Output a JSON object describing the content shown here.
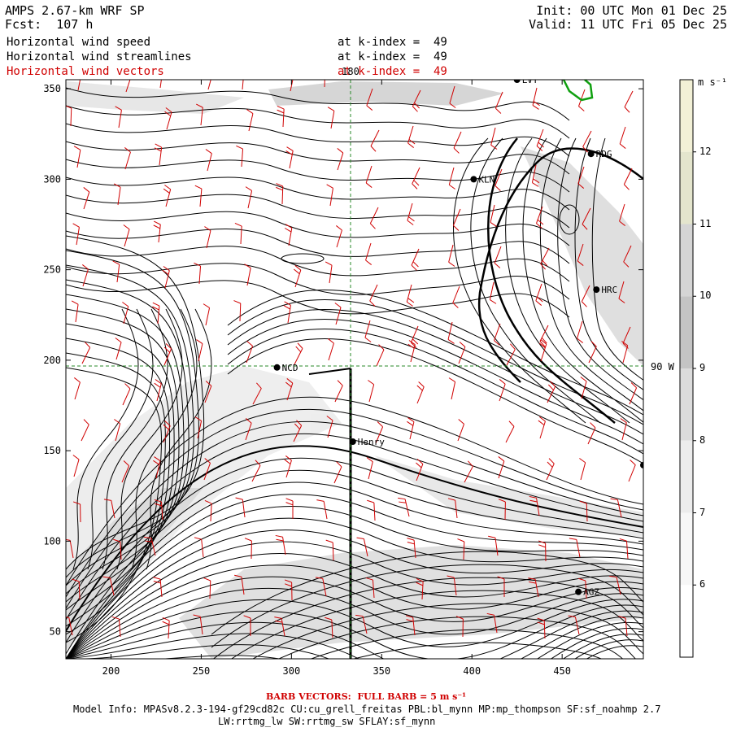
{
  "header": {
    "model": "AMPS 2.67-km WRF SP",
    "forecast": "Fcst:  107 h",
    "init": "Init: 00 UTC Mon 01 Dec 25",
    "valid": "Valid: 11 UTC Fri 05 Dec 25"
  },
  "fields": [
    {
      "name": "Horizontal wind speed",
      "level": "at k-index =  49",
      "color": "#000000"
    },
    {
      "name": "Horizontal wind streamlines",
      "level": "at k-index =  49",
      "color": "#000000"
    },
    {
      "name": "Horizontal wind vectors",
      "level": "at k-index =  49",
      "color": "#d00000"
    }
  ],
  "map": {
    "x_ticks": [
      "200",
      "250",
      "300",
      "350",
      "400",
      "450"
    ],
    "y_ticks": [
      "350",
      "300",
      "250",
      "200",
      "150",
      "100",
      "50"
    ],
    "meridian_label": "180",
    "parallel_label": "90 W",
    "stations": [
      {
        "id": "LVT",
        "x": 425,
        "y": 355
      },
      {
        "id": "RDG",
        "x": 466,
        "y": 314
      },
      {
        "id": "KLN",
        "x": 401,
        "y": 300
      },
      {
        "id": "HRC",
        "x": 469,
        "y": 239
      },
      {
        "id": "NCD",
        "x": 292,
        "y": 196
      },
      {
        "id": "Henry",
        "x": 334,
        "y": 155
      },
      {
        "id": "AGZ",
        "x": 459,
        "y": 72
      },
      {
        "id": "",
        "x": 495,
        "y": 142
      }
    ]
  },
  "colorbar": {
    "units": "m s⁻¹",
    "labels": [
      "12",
      "11",
      "10",
      "9",
      "8",
      "7",
      "6"
    ],
    "colors": [
      "#f2f0d6",
      "#e4e5cd",
      "#d5d5d5",
      "#c4c4c4",
      "#dcdcdc",
      "#ececec",
      "#f7f7f7",
      "#ffffff"
    ]
  },
  "footer": {
    "barb_note": "BARB VECTORS:  FULL BARB = 5 m s⁻¹",
    "model_info": "Model Info: MPASv8.2.3-194-gf29cd82c CU:cu_grell_freitas PBL:bl_mynn MP:mp_thompson SF:sf_noahmp 2.7",
    "physics": "LW:rrtmg_lw SW:rrtmg_sw SFLAY:sf_mynn"
  }
}
